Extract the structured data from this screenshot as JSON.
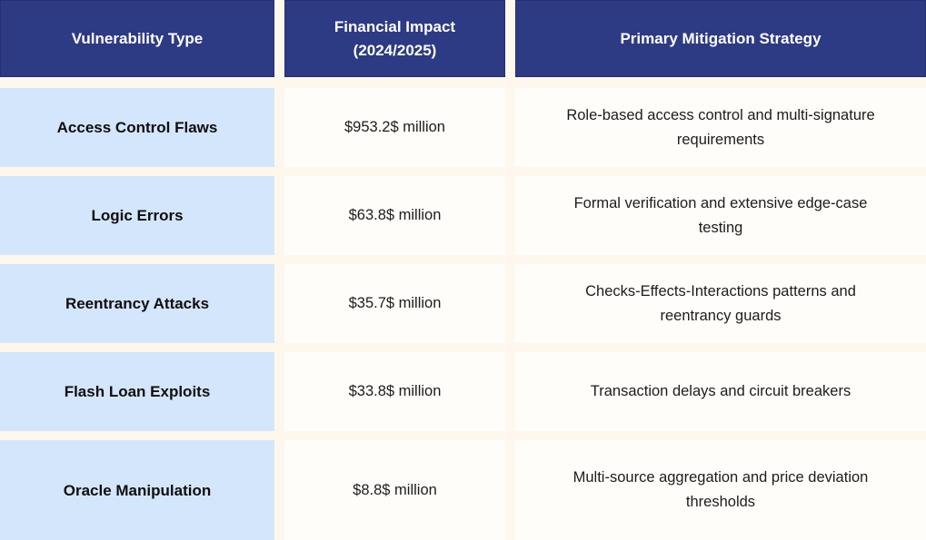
{
  "chart_data": {
    "type": "table",
    "title": "",
    "columns": [
      "Vulnerability Type",
      "Financial Impact (2024/2025)",
      "Primary Mitigation Strategy"
    ],
    "rows": [
      [
        "Access Control Flaws",
        "$953.2$ million",
        "Role-based access control and multi-signature requirements"
      ],
      [
        "Logic Errors",
        "$63.8$ million",
        "Formal verification and extensive edge-case testing"
      ],
      [
        "Reentrancy Attacks",
        "$35.7$ million",
        "Checks-Effects-Interactions patterns and reentrancy guards"
      ],
      [
        "Flash Loan Exploits",
        "$33.8$ million",
        "Transaction delays and circuit breakers"
      ],
      [
        "Oracle Manipulation",
        "$8.8$ million",
        "Multi-source aggregation and price deviation thresholds"
      ]
    ],
    "financial_impact_million_usd": {
      "Access Control Flaws": 953.2,
      "Logic Errors": 63.8,
      "Reentrancy Attacks": 35.7,
      "Flash Loan Exploits": 33.8,
      "Oracle Manipulation": 8.8
    }
  },
  "colors": {
    "header_bg": "#2d3a84",
    "header_border": "#26306e",
    "header_text": "#ffffff",
    "vulnerability_cell_bg": "#d4e6fb",
    "value_cell_bg": "#fffdfa",
    "page_bg": "#fdf7ed",
    "body_text": "#1c1c1c",
    "vulnerability_text": "#0e0e0e"
  }
}
